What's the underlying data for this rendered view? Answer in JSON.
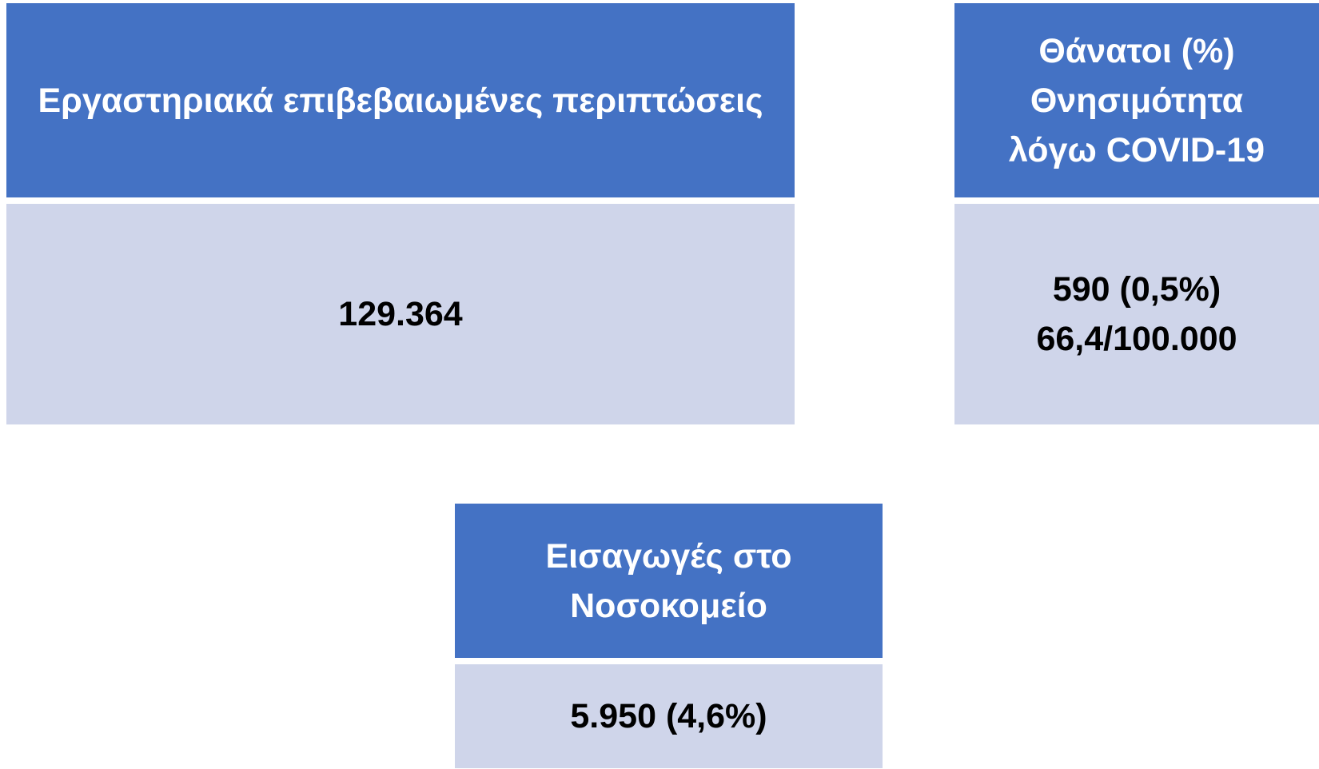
{
  "cards": [
    {
      "title": [
        "Εργαστηριακά επιβεβαιωμένες περιπτώσεις"
      ],
      "value": [
        "129.364"
      ]
    },
    {
      "title": [
        "Θάνατοι (%)",
        "Θνησιμότητα",
        "λόγω COVID-19"
      ],
      "value": [
        "590 (0,5%)",
        "66,4/100.000"
      ]
    },
    {
      "title": [
        "Εισαγωγές στο",
        "Νοσοκομείο"
      ],
      "value": [
        "5.950 (4,6%)"
      ]
    }
  ]
}
